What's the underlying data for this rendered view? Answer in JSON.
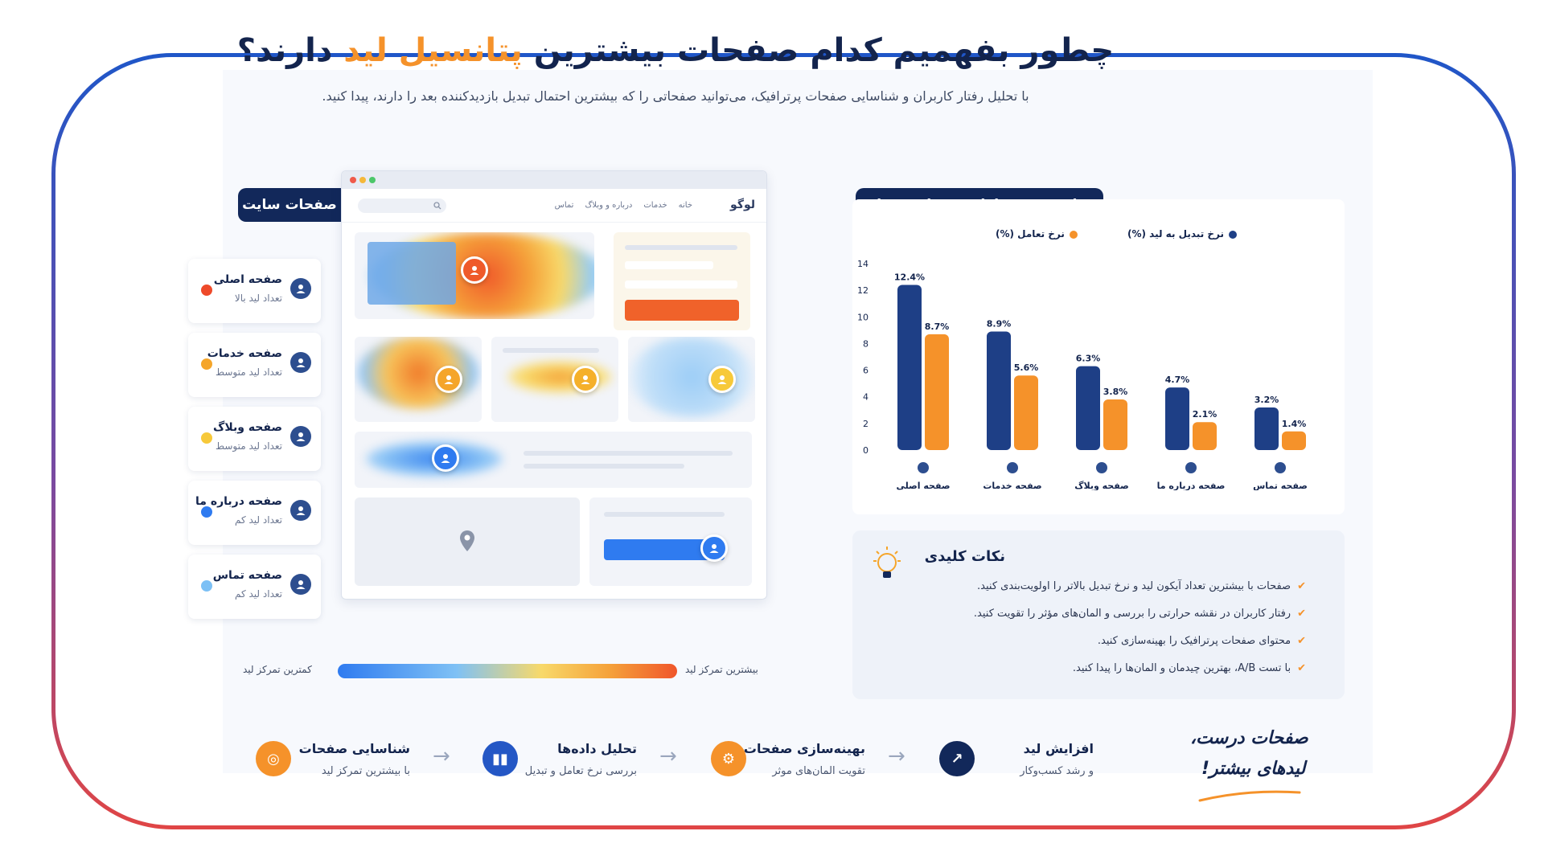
{
  "header": {
    "title_part1": "چطور بفهمیم کدام صفحات بیشترین",
    "title_highlight": "پتانسیل لید",
    "title_part2": "دارند؟",
    "subtitle": "با تحلیل رفتار کاربران و شناسایی صفحات پرترافیک، می‌توانید صفحاتی را که بیشترین احتمال تبدیل بازدیدکننده بعد را دارند، پیدا کنید."
  },
  "heatmap_section": {
    "label": "نقشه حرارتی صفحات سایت",
    "pages": [
      {
        "name": "صفحه اصلی",
        "lead": "تعداد لید بالا",
        "color": "#ee4a2a"
      },
      {
        "name": "صفحه خدمات",
        "lead": "تعداد لید متوسط",
        "color": "#f5a52a"
      },
      {
        "name": "صفحه وبلاگ",
        "lead": "تعداد لید متوسط",
        "color": "#f7c93a"
      },
      {
        "name": "صفحه درباره ما",
        "lead": "تعداد لید کم",
        "color": "#2f7bf0"
      },
      {
        "name": "صفحه تماس",
        "lead": "تعداد لید کم",
        "color": "#7cc0f5"
      }
    ],
    "browser": {
      "logo": "لوگو",
      "nav": [
        "خانه",
        "خدمات",
        "درباره و وبلاگ",
        "تماس"
      ]
    },
    "scale_high": "بیشترین تمرکز لید",
    "scale_low": "کمترین تمرکز لید"
  },
  "chart_section": {
    "label": "مقایسه نرخ تعامل و تبدیل صفحات",
    "icons": [
      "home-icon",
      "gear-icon",
      "document-icon",
      "user-icon",
      "phone-icon"
    ]
  },
  "chart_data": {
    "type": "bar",
    "categories": [
      "صفحه اصلی",
      "صفحه خدمات",
      "صفحه وبلاگ",
      "صفحه درباره ما",
      "صفحه تماس"
    ],
    "series": [
      {
        "name": "نرخ تبدیل به لید (%)",
        "color": "#1e3f86",
        "values": [
          12.4,
          8.9,
          6.3,
          4.7,
          3.2
        ],
        "labels": [
          "12.4%",
          "8.9%",
          "6.3%",
          "4.7%",
          "3.2%"
        ]
      },
      {
        "name": "نرخ تعامل (%)",
        "color": "#f5922a",
        "values": [
          8.7,
          5.6,
          3.8,
          2.1,
          1.4
        ],
        "labels": [
          "8.7%",
          "5.6%",
          "3.8%",
          "2.1%",
          "1.4%"
        ]
      }
    ],
    "yticks": [
      0,
      2,
      4,
      6,
      8,
      10,
      12,
      14
    ],
    "ylim": [
      0,
      14
    ],
    "legend_position": "top-right",
    "grid": false
  },
  "key_points": {
    "title": "نکات کلیدی",
    "items": [
      "صفحات با بیشترین تعداد آیکون لید و نرخ تبدیل بالاتر را اولویت‌بندی کنید.",
      "رفتار کاربران در نقشه حرارتی را بررسی و المان‌های مؤثر را تقویت کنید.",
      "محتوای صفحات پرترافیک را بهینه‌سازی کنید.",
      "با تست A/B، بهترین چیدمان و المان‌ها را پیدا کنید."
    ]
  },
  "flow": {
    "steps": [
      {
        "title": "شناسایی صفحات",
        "sub": "با بیشترین تمرکز لید",
        "color": "#f5922a",
        "icon": "target-icon"
      },
      {
        "title": "تحلیل داده‌ها",
        "sub": "بررسی نرخ تعامل و تبدیل",
        "color": "#2457c5",
        "icon": "bar-chart-icon"
      },
      {
        "title": "بهینه‌سازی صفحات",
        "sub": "تقویت المان‌های موثر",
        "color": "#f5922a",
        "icon": "gear-icon"
      },
      {
        "title": "افزایش لید",
        "sub": "و رشد کسب‌وکار",
        "color": "#12285a",
        "icon": "growth-chart-icon"
      }
    ],
    "slogan_line1": "صفحات درست،",
    "slogan_line2": "لیدهای بیشتر!"
  }
}
